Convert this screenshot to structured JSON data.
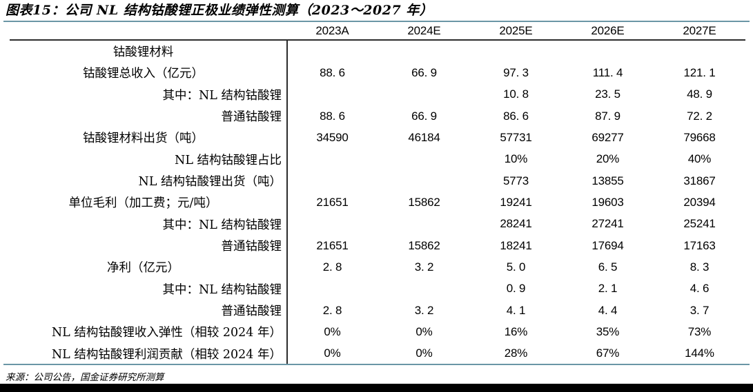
{
  "title": "图表15：公司 NL 结构钴酸锂正极业绩弹性测算（2023～2027 年）",
  "source": "来源：公司公告，国金证券研究所测算",
  "colors": {
    "accent_line": "#6A96A6",
    "table_rule": "#2b2b2b",
    "text": "#000000",
    "footer_bar": "#000000"
  },
  "table": {
    "col_headers": [
      "2023A",
      "2024E",
      "2025E",
      "2026E",
      "2027E"
    ],
    "rows": [
      {
        "label": "钴酸锂材料",
        "align": "center",
        "values": [
          "",
          "",
          "",
          "",
          ""
        ]
      },
      {
        "label": "钴酸锂总收入（亿元）",
        "align": "center",
        "values": [
          "88. 6",
          "66. 9",
          "97. 3",
          "111. 4",
          "121. 1"
        ]
      },
      {
        "label": "其中：NL 结构钴酸锂",
        "align": "right",
        "values": [
          "",
          "",
          "10. 8",
          "23. 5",
          "48. 9"
        ]
      },
      {
        "label": "普通钴酸锂",
        "align": "right",
        "values": [
          "88. 6",
          "66. 9",
          "86. 6",
          "87. 9",
          "72. 2"
        ]
      },
      {
        "label": "钴酸锂材料出货（吨）",
        "align": "center",
        "values": [
          "34590",
          "46184",
          "57731",
          "69277",
          "79668"
        ]
      },
      {
        "label": "NL 结构钴酸锂占比",
        "align": "right",
        "values": [
          "",
          "",
          "10%",
          "20%",
          "40%"
        ]
      },
      {
        "label": "NL 结构钴酸锂出货（吨）",
        "align": "right",
        "values": [
          "",
          "",
          "5773",
          "13855",
          "31867"
        ]
      },
      {
        "label": "单位毛利（加工费；元/吨）",
        "align": "center",
        "values": [
          "21651",
          "15862",
          "19241",
          "19603",
          "20394"
        ]
      },
      {
        "label": "其中：NL 结构钴酸锂",
        "align": "right",
        "values": [
          "",
          "",
          "28241",
          "27241",
          "25241"
        ]
      },
      {
        "label": "普通钴酸锂",
        "align": "right",
        "values": [
          "21651",
          "15862",
          "18241",
          "17694",
          "17163"
        ]
      },
      {
        "label": "净利（亿元）",
        "align": "center",
        "values": [
          "2. 8",
          "3. 2",
          "5. 0",
          "6. 5",
          "8. 3"
        ]
      },
      {
        "label": "其中：NL 结构钴酸锂",
        "align": "right",
        "values": [
          "",
          "",
          "0. 9",
          "2. 1",
          "4. 6"
        ]
      },
      {
        "label": "普通钴酸锂",
        "align": "right",
        "values": [
          "2. 8",
          "3. 2",
          "4. 1",
          "4. 4",
          "3. 7"
        ]
      },
      {
        "label": "NL 结构钴酸锂收入弹性（相较 2024 年）",
        "align": "right",
        "values": [
          "0%",
          "0%",
          "16%",
          "35%",
          "73%"
        ]
      },
      {
        "label": "NL 结构钴酸锂利润贡献（相较 2024 年）",
        "align": "right",
        "values": [
          "0%",
          "0%",
          "28%",
          "67%",
          "144%"
        ]
      }
    ]
  }
}
